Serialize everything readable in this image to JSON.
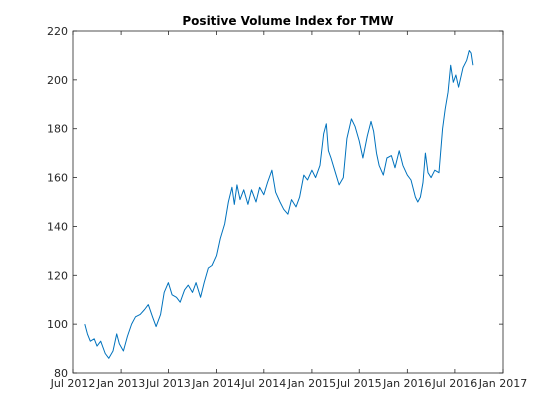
{
  "chart_data": {
    "type": "line",
    "title": "Positive Volume Index for TMW",
    "xlabel": "",
    "ylabel": "",
    "xlim": [
      "2012-07-01",
      "2017-01-01"
    ],
    "ylim": [
      80,
      220
    ],
    "x_ticks": [
      {
        "date": "2012-07-01",
        "label": "Jul 2012"
      },
      {
        "date": "2013-01-01",
        "label": "Jan 2013"
      },
      {
        "date": "2013-07-01",
        "label": "Jul 2013"
      },
      {
        "date": "2014-01-01",
        "label": "Jan 2014"
      },
      {
        "date": "2014-07-01",
        "label": "Jul 2014"
      },
      {
        "date": "2015-01-01",
        "label": "Jan 2015"
      },
      {
        "date": "2015-07-01",
        "label": "Jul 2015"
      },
      {
        "date": "2016-01-01",
        "label": "Jan 2016"
      },
      {
        "date": "2016-07-01",
        "label": "Jul 2016"
      },
      {
        "date": "2017-01-01",
        "label": "Jan 2017"
      }
    ],
    "y_ticks": [
      80,
      100,
      120,
      140,
      160,
      180,
      200,
      220
    ],
    "grid": false,
    "legend": "none",
    "series": [
      {
        "color": "#0072bd",
        "points": [
          [
            "2012-08-15",
            100
          ],
          [
            "2012-08-25",
            96
          ],
          [
            "2012-09-05",
            93
          ],
          [
            "2012-09-20",
            94
          ],
          [
            "2012-10-01",
            91
          ],
          [
            "2012-10-15",
            93
          ],
          [
            "2012-11-01",
            88
          ],
          [
            "2012-11-15",
            86
          ],
          [
            "2012-12-01",
            89
          ],
          [
            "2012-12-15",
            96
          ],
          [
            "2012-12-25",
            92
          ],
          [
            "2013-01-10",
            89
          ],
          [
            "2013-01-25",
            95
          ],
          [
            "2013-02-10",
            100
          ],
          [
            "2013-02-25",
            103
          ],
          [
            "2013-03-15",
            104
          ],
          [
            "2013-04-01",
            106
          ],
          [
            "2013-04-15",
            108
          ],
          [
            "2013-05-01",
            103
          ],
          [
            "2013-05-15",
            99
          ],
          [
            "2013-06-01",
            104
          ],
          [
            "2013-06-15",
            113
          ],
          [
            "2013-07-01",
            117
          ],
          [
            "2013-07-15",
            112
          ],
          [
            "2013-08-01",
            111
          ],
          [
            "2013-08-15",
            109
          ],
          [
            "2013-09-01",
            114
          ],
          [
            "2013-09-15",
            116
          ],
          [
            "2013-10-01",
            113
          ],
          [
            "2013-10-15",
            117
          ],
          [
            "2013-11-01",
            111
          ],
          [
            "2013-11-15",
            117
          ],
          [
            "2013-12-01",
            123
          ],
          [
            "2013-12-15",
            124
          ],
          [
            "2014-01-01",
            128
          ],
          [
            "2014-01-15",
            135
          ],
          [
            "2014-02-01",
            141
          ],
          [
            "2014-02-15",
            150
          ],
          [
            "2014-03-01",
            156
          ],
          [
            "2014-03-10",
            149
          ],
          [
            "2014-03-20",
            157
          ],
          [
            "2014-04-01",
            151
          ],
          [
            "2014-04-15",
            155
          ],
          [
            "2014-05-01",
            149
          ],
          [
            "2014-05-15",
            155
          ],
          [
            "2014-06-01",
            150
          ],
          [
            "2014-06-15",
            156
          ],
          [
            "2014-07-01",
            153
          ],
          [
            "2014-07-15",
            158
          ],
          [
            "2014-08-01",
            163
          ],
          [
            "2014-08-15",
            154
          ],
          [
            "2014-09-01",
            150
          ],
          [
            "2014-09-15",
            147
          ],
          [
            "2014-10-01",
            145
          ],
          [
            "2014-10-15",
            151
          ],
          [
            "2014-11-01",
            148
          ],
          [
            "2014-11-15",
            152
          ],
          [
            "2014-12-01",
            161
          ],
          [
            "2014-12-15",
            159
          ],
          [
            "2015-01-01",
            163
          ],
          [
            "2015-01-15",
            160
          ],
          [
            "2015-02-01",
            165
          ],
          [
            "2015-02-15",
            178
          ],
          [
            "2015-02-25",
            182
          ],
          [
            "2015-03-05",
            171
          ],
          [
            "2015-03-15",
            168
          ],
          [
            "2015-04-01",
            162
          ],
          [
            "2015-04-15",
            157
          ],
          [
            "2015-05-01",
            160
          ],
          [
            "2015-05-15",
            176
          ],
          [
            "2015-06-01",
            184
          ],
          [
            "2015-06-15",
            181
          ],
          [
            "2015-07-01",
            175
          ],
          [
            "2015-07-15",
            168
          ],
          [
            "2015-08-01",
            177
          ],
          [
            "2015-08-15",
            183
          ],
          [
            "2015-08-25",
            179
          ],
          [
            "2015-09-05",
            170
          ],
          [
            "2015-09-15",
            165
          ],
          [
            "2015-10-01",
            161
          ],
          [
            "2015-10-15",
            168
          ],
          [
            "2015-11-01",
            169
          ],
          [
            "2015-11-15",
            164
          ],
          [
            "2015-12-01",
            171
          ],
          [
            "2015-12-15",
            165
          ],
          [
            "2016-01-01",
            161
          ],
          [
            "2016-01-15",
            159
          ],
          [
            "2016-02-01",
            152
          ],
          [
            "2016-02-10",
            150
          ],
          [
            "2016-02-20",
            152
          ],
          [
            "2016-03-01",
            158
          ],
          [
            "2016-03-10",
            170
          ],
          [
            "2016-03-20",
            162
          ],
          [
            "2016-04-01",
            160
          ],
          [
            "2016-04-15",
            163
          ],
          [
            "2016-05-01",
            162
          ],
          [
            "2016-05-15",
            180
          ],
          [
            "2016-05-25",
            188
          ],
          [
            "2016-06-05",
            195
          ],
          [
            "2016-06-15",
            206
          ],
          [
            "2016-06-25",
            199
          ],
          [
            "2016-07-05",
            202
          ],
          [
            "2016-07-15",
            197
          ],
          [
            "2016-08-01",
            205
          ],
          [
            "2016-08-15",
            208
          ],
          [
            "2016-08-25",
            212
          ],
          [
            "2016-09-01",
            211
          ],
          [
            "2016-09-08",
            206
          ]
        ]
      }
    ]
  }
}
